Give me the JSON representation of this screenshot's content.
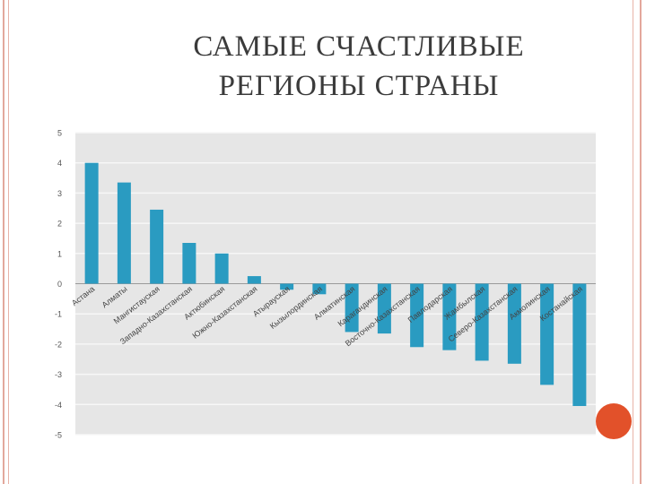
{
  "slide": {
    "title_line1": "САМЫЕ СЧАСТЛИВЫЕ",
    "title_line2": "РЕГИОНЫ СТРАНЫ"
  },
  "colors": {
    "bar": "#2a9bc1",
    "plot_background": "#e6e6e6",
    "frame": "#e3a89c",
    "accent": "#e2512a"
  },
  "chart_data": {
    "type": "bar",
    "categories": [
      "Астана",
      "Алматы",
      "Мангистауская",
      "Западно-Казахстанская",
      "Актюбинская",
      "Южно-Казахстанская",
      "Атырауская",
      "Кызылординская",
      "Алматинская",
      "Карагандинская",
      "Восточно-Казахстанская",
      "Павлодарская",
      "Жамбылская",
      "Северо-Казахстанская",
      "Акмолинская",
      "Костанайская"
    ],
    "values": [
      4.0,
      3.35,
      2.45,
      1.35,
      1.0,
      0.25,
      -0.2,
      -0.35,
      -1.6,
      -1.65,
      -2.1,
      -2.2,
      -2.55,
      -2.65,
      -3.35,
      -4.05
    ],
    "ylim": [
      -5,
      5
    ],
    "yticks": [
      5,
      4,
      3,
      2,
      1,
      0,
      -1,
      -2,
      -3,
      -4,
      -5
    ],
    "grid": true,
    "title": "",
    "xlabel": "",
    "ylabel": ""
  }
}
